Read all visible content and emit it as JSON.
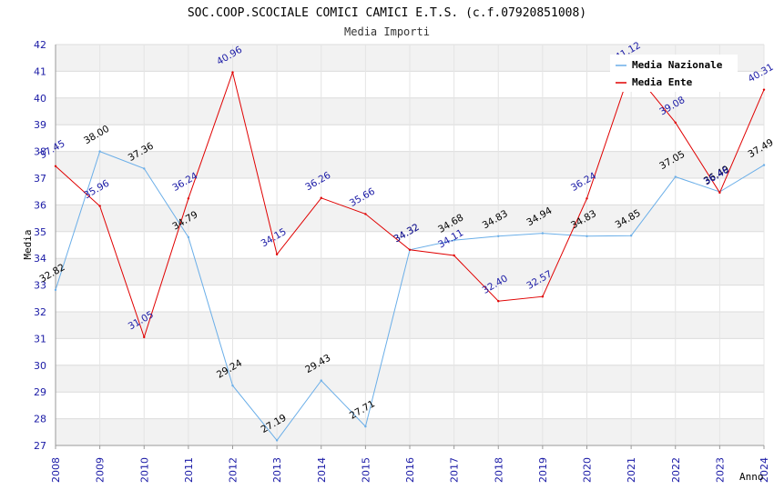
{
  "chart_data": {
    "type": "line",
    "title": "SOC.COOP.SCOCIALE COMICI CAMICI E.T.S. (c.f.07920851008)",
    "subtitle": "Media Importi",
    "xlabel": "Anno",
    "ylabel": "Media",
    "ylim": [
      27,
      42
    ],
    "y_ticks": [
      "27",
      "28",
      "29",
      "30",
      "31",
      "32",
      "33",
      "34",
      "35",
      "36",
      "37",
      "38",
      "39",
      "40",
      "41",
      "42"
    ],
    "categories": [
      "2008",
      "2009",
      "2010",
      "2011",
      "2012",
      "2013",
      "2014",
      "2015",
      "2016",
      "2017",
      "2018",
      "2019",
      "2020",
      "2021",
      "2022",
      "2023",
      "2024"
    ],
    "grid": true,
    "legend_position": "top-right",
    "series": [
      {
        "name": "Media Nazionale",
        "color": "#6aaee8",
        "label_color": "#000000",
        "values": [
          32.82,
          38.0,
          37.36,
          34.79,
          29.24,
          27.19,
          29.43,
          27.71,
          34.32,
          34.68,
          34.83,
          34.94,
          34.83,
          34.85,
          37.05,
          36.49,
          37.49
        ],
        "labels": [
          "32.82",
          "38.00",
          "37.36",
          "34.79",
          "29.24",
          "27.19",
          "29.43",
          "27.71",
          "34.32",
          "34.68",
          "34.83",
          "34.94",
          "34.83",
          "34.85",
          "37.05",
          "36.49",
          "37.49"
        ]
      },
      {
        "name": "Media Ente",
        "color": "#e00000",
        "label_color": "#1a1aa6",
        "values": [
          37.45,
          35.96,
          31.05,
          36.24,
          40.96,
          34.15,
          36.26,
          35.66,
          34.32,
          34.11,
          32.4,
          32.57,
          36.24,
          41.12,
          39.08,
          36.46,
          40.31
        ],
        "labels": [
          "37.45",
          "35.96",
          "31.05",
          "36.24",
          "40.96",
          "34.15",
          "36.26",
          "35.66",
          "34.32",
          "34.11",
          "32.40",
          "32.57",
          "36.24",
          "41.12",
          "39.08",
          "36.46",
          "40.31"
        ]
      }
    ]
  }
}
